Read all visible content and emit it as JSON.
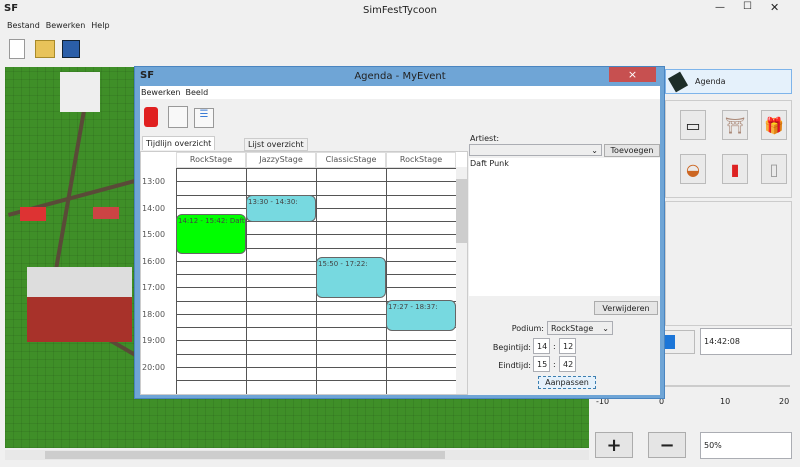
{
  "app": {
    "title": "SimFestTycoon",
    "logo": "SF",
    "menu": [
      "Bestand",
      "Bewerken",
      "Help"
    ],
    "toolbar_icons": [
      "new-file-icon",
      "open-folder-icon",
      "save-icon"
    ]
  },
  "right_panel": {
    "agenda_label": "Agenda",
    "items": [
      "road-icon",
      "gate-icon",
      "gift-icon",
      "hotdog-icon",
      "fries-icon",
      "toilet-paper-icon"
    ],
    "clock": "14:42:08",
    "slider": {
      "ticks": [
        "-10",
        "0",
        "10",
        "20"
      ],
      "value": 0
    },
    "plus": "+",
    "minus": "−",
    "zoom": "50%"
  },
  "dialog": {
    "title": "Agenda - MyEvent",
    "logo": "SF",
    "close": "×",
    "menu": [
      "Bewerken",
      "Beeld"
    ],
    "tabs": [
      "Tijdlijn overzicht",
      "Lijst overzicht"
    ],
    "stages": [
      "RockStage",
      "JazzyStage",
      "ClassicStage",
      "RockStage"
    ],
    "hours": [
      "13:00",
      "14:00",
      "15:00",
      "16:00",
      "17:00",
      "18:00",
      "19:00",
      "20:00"
    ],
    "events": [
      {
        "stage": 0,
        "start": "14:12",
        "end": "15:42",
        "label": "14:12 - 15:42: Daft Punk",
        "color": "#00ff00"
      },
      {
        "stage": 1,
        "start": "13:30",
        "end": "14:30",
        "label": "13:30 - 14:30:",
        "color": "#77d9e0"
      },
      {
        "stage": 2,
        "start": "15:50",
        "end": "17:22",
        "label": "15:50 - 17:22:",
        "color": "#77d9e0"
      },
      {
        "stage": 3,
        "start": "17:27",
        "end": "18:37",
        "label": "17:27 - 18:37:",
        "color": "#77d9e0"
      }
    ],
    "artist_label": "Artiest:",
    "artist_value": "",
    "add_button": "Toevoegen",
    "artists": [
      "Daft Punk"
    ],
    "remove_button": "Verwijderen",
    "podium_label": "Podium:",
    "podium_value": "RockStage",
    "begin_label": "Begintijd:",
    "begin_h": "14",
    "begin_m": "12",
    "end_label": "Eindtijd:",
    "end_h": "15",
    "end_m": "42",
    "sep": ":",
    "apply_button": "Aanpassen"
  }
}
